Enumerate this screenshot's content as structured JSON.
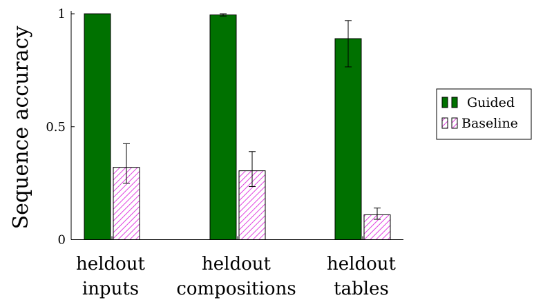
{
  "chart_data": {
    "type": "bar",
    "ylabel": "Sequence accuracy",
    "ylim": [
      0,
      1
    ],
    "yticks": [
      {
        "value": 0,
        "label": "0"
      },
      {
        "value": 0.5,
        "label": "0.5"
      },
      {
        "value": 1,
        "label": "1"
      }
    ],
    "categories": [
      [
        "heldout",
        "inputs"
      ],
      [
        "heldout",
        "compositions"
      ],
      [
        "heldout",
        "tables"
      ]
    ],
    "series": [
      {
        "name": "Guided",
        "color": "#007100",
        "pattern": "solid",
        "values": [
          1.0,
          0.995,
          0.89
        ],
        "err_low": [
          1.0,
          0.99,
          0.765
        ],
        "err_high": [
          1.0,
          1.0,
          0.97
        ]
      },
      {
        "name": "Baseline",
        "color": "#e040e0",
        "pattern": "hatch",
        "values": [
          0.32,
          0.305,
          0.11
        ],
        "err_low": [
          0.25,
          0.235,
          0.09
        ],
        "err_high": [
          0.425,
          0.39,
          0.14
        ]
      }
    ],
    "grid": false,
    "legend_position": "right"
  }
}
